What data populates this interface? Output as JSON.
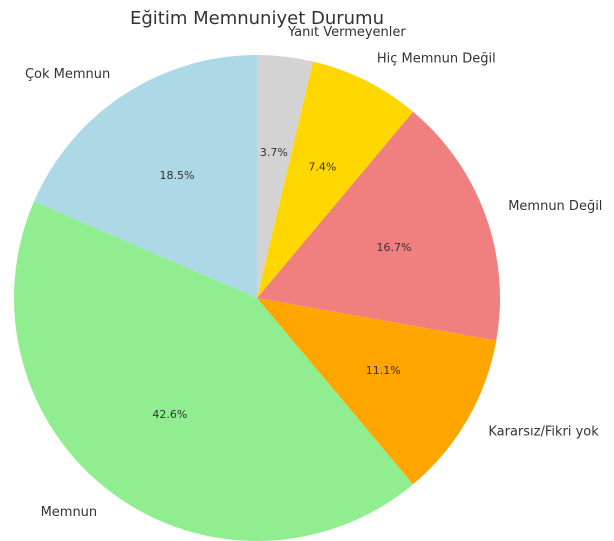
{
  "chart_data": {
    "type": "pie",
    "title": "Eğitim Memnuniyet Durumu",
    "categories": [
      "Çok Memnun",
      "Memnun",
      "Kararsız/Fikri yok",
      "Memnun Değil",
      "Hiç Memnun Değil",
      "Yanıt Vermeyenler"
    ],
    "values": [
      18.5,
      42.6,
      11.1,
      16.7,
      7.4,
      3.7
    ],
    "value_labels": [
      "18.5%",
      "42.6%",
      "11.1%",
      "16.7%",
      "7.4%",
      "3.7%"
    ],
    "colors": [
      "#add8e6",
      "#90ee90",
      "#ffa500",
      "#f08080",
      "#ffd700",
      "#d3d3d3"
    ]
  }
}
